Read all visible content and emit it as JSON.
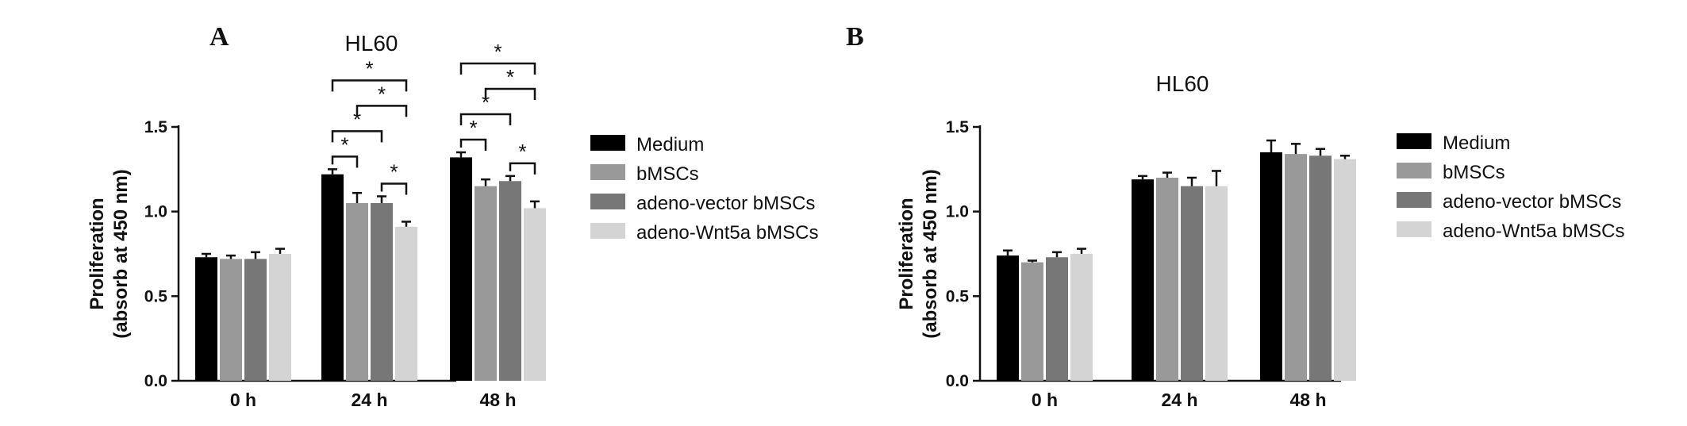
{
  "chart_data": [
    {
      "type": "bar",
      "panel": "A",
      "title": "HL60",
      "ylabel_line1": "Proliferation",
      "ylabel_line2": "(absorb at 450 nm)",
      "xlabel": "",
      "ylim": [
        0,
        1.5
      ],
      "yticks": [
        "0.0",
        "0.5",
        "1.0",
        "1.5"
      ],
      "categories": [
        "0 h",
        "24 h",
        "48 h"
      ],
      "series": [
        {
          "name": "Medium",
          "color": "#000000",
          "values": [
            0.73,
            1.22,
            1.32
          ],
          "errors": [
            0.02,
            0.03,
            0.03
          ]
        },
        {
          "name": "bMSCs",
          "color": "#999999",
          "values": [
            0.72,
            1.05,
            1.15
          ],
          "errors": [
            0.02,
            0.06,
            0.04
          ]
        },
        {
          "name": "adeno-vector bMSCs",
          "color": "#777777",
          "values": [
            0.72,
            1.05,
            1.18
          ],
          "errors": [
            0.04,
            0.04,
            0.03
          ]
        },
        {
          "name": "adeno-Wnt5a bMSCs",
          "color": "#d4d4d4",
          "values": [
            0.75,
            0.91,
            1.02
          ],
          "errors": [
            0.03,
            0.03,
            0.04
          ]
        }
      ],
      "significance": [
        {
          "category": "24 h",
          "from": 0,
          "to": 1,
          "label": "*"
        },
        {
          "category": "24 h",
          "from": 0,
          "to": 2,
          "label": "*"
        },
        {
          "category": "24 h",
          "from": 0,
          "to": 3,
          "label": "*"
        },
        {
          "category": "24 h",
          "from": 1,
          "to": 3,
          "label": "*"
        },
        {
          "category": "24 h",
          "from": 2,
          "to": 3,
          "label": "*"
        },
        {
          "category": "48 h",
          "from": 0,
          "to": 1,
          "label": "*"
        },
        {
          "category": "48 h",
          "from": 0,
          "to": 2,
          "label": "*"
        },
        {
          "category": "48 h",
          "from": 0,
          "to": 3,
          "label": "*"
        },
        {
          "category": "48 h",
          "from": 1,
          "to": 3,
          "label": "*"
        },
        {
          "category": "48 h",
          "from": 2,
          "to": 3,
          "label": "*"
        }
      ]
    },
    {
      "type": "bar",
      "panel": "B",
      "title": "HL60",
      "ylabel_line1": "Proliferation",
      "ylabel_line2": "(absorb at 450 nm)",
      "xlabel": "",
      "ylim": [
        0,
        1.5
      ],
      "yticks": [
        "0.0",
        "0.5",
        "1.0",
        "1.5"
      ],
      "categories": [
        "0 h",
        "24 h",
        "48 h"
      ],
      "series": [
        {
          "name": "Medium",
          "color": "#000000",
          "values": [
            0.74,
            1.19,
            1.35
          ],
          "errors": [
            0.03,
            0.02,
            0.07
          ]
        },
        {
          "name": "bMSCs",
          "color": "#999999",
          "values": [
            0.7,
            1.2,
            1.34
          ],
          "errors": [
            0.01,
            0.03,
            0.06
          ]
        },
        {
          "name": "adeno-vector bMSCs",
          "color": "#777777",
          "values": [
            0.73,
            1.15,
            1.33
          ],
          "errors": [
            0.03,
            0.05,
            0.04
          ]
        },
        {
          "name": "adeno-Wnt5a bMSCs",
          "color": "#d4d4d4",
          "values": [
            0.75,
            1.15,
            1.31
          ],
          "errors": [
            0.03,
            0.09,
            0.02
          ]
        }
      ],
      "significance": []
    }
  ]
}
